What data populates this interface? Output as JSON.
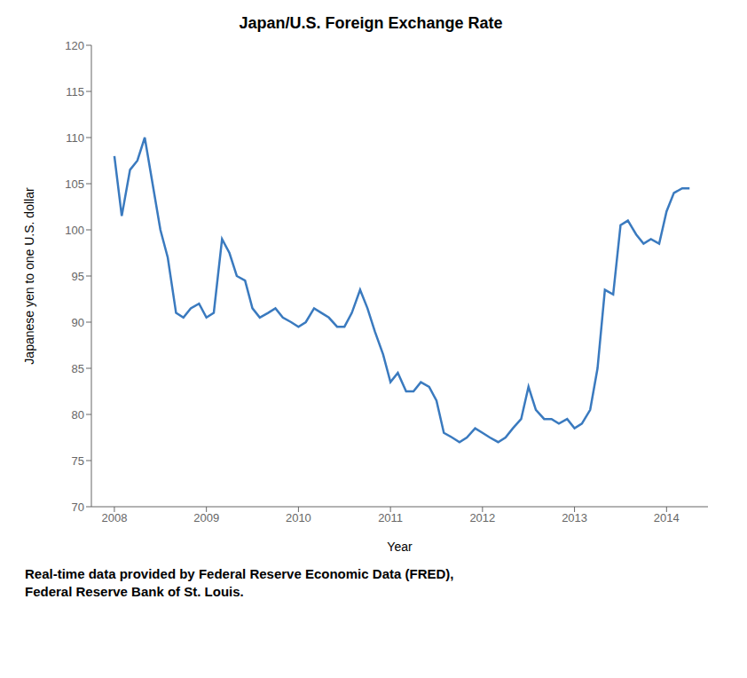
{
  "chart_data": {
    "type": "line",
    "title": "Japan/U.S. Foreign Exchange Rate",
    "x_label": "Year",
    "y_label": "Japanese yen to one U.S. dollar",
    "annotations": [
      "Real-time data provided by Federal Reserve Economic Data (FRED),\nFederal Reserve Bank of St. Louis."
    ],
    "x": [
      2008.0,
      2008.08,
      2008.17,
      2008.25,
      2008.33,
      2008.5,
      2008.58,
      2008.67,
      2008.75,
      2008.83,
      2008.92,
      2009.0,
      2009.08,
      2009.17,
      2009.25,
      2009.33,
      2009.42,
      2009.5,
      2009.58,
      2009.67,
      2009.75,
      2009.83,
      2009.92,
      2010.0,
      2010.08,
      2010.17,
      2010.25,
      2010.33,
      2010.42,
      2010.5,
      2010.58,
      2010.67,
      2010.75,
      2010.83,
      2010.92,
      2011.0,
      2011.08,
      2011.17,
      2011.25,
      2011.33,
      2011.42,
      2011.5,
      2011.58,
      2011.67,
      2011.75,
      2011.83,
      2011.92,
      2012.0,
      2012.08,
      2012.17,
      2012.25,
      2012.33,
      2012.42,
      2012.5,
      2012.58,
      2012.67,
      2012.75,
      2012.83,
      2012.92,
      2013.0,
      2013.08,
      2013.17,
      2013.25,
      2013.33,
      2013.42,
      2013.5,
      2013.58,
      2013.67,
      2013.75,
      2013.83,
      2013.92,
      2014.0,
      2014.08,
      2014.17,
      2014.25
    ],
    "values": [
      108.0,
      101.5,
      106.5,
      107.5,
      110.0,
      100.0,
      97.0,
      91.0,
      90.5,
      91.5,
      92.0,
      90.5,
      91.0,
      99.0,
      97.5,
      95.0,
      94.5,
      91.5,
      90.5,
      91.0,
      91.5,
      90.5,
      90.0,
      89.5,
      90.0,
      91.5,
      91.0,
      90.5,
      89.5,
      89.5,
      91.0,
      93.5,
      91.5,
      89.0,
      86.5,
      83.5,
      84.5,
      82.5,
      82.5,
      83.5,
      83.0,
      81.5,
      78.0,
      77.5,
      77.0,
      77.5,
      78.5,
      78.0,
      77.5,
      77.0,
      77.5,
      78.5,
      79.5,
      83.0,
      80.5,
      79.5,
      79.5,
      79.0,
      79.5,
      78.5,
      79.0,
      80.5,
      85.0,
      93.5,
      93.0,
      100.5,
      101.0,
      99.5,
      98.5,
      99.0,
      98.5,
      102.0,
      104.0,
      104.5,
      104.5
    ],
    "color": "#3a7abf",
    "xlim": [
      2007.75,
      2014.45
    ],
    "xticks": [
      2008,
      2009,
      2010,
      2011,
      2012,
      2013,
      2014
    ],
    "ylim": [
      70,
      120
    ],
    "yticks": [
      70,
      75,
      80,
      85,
      90,
      95,
      100,
      105,
      110,
      115,
      120
    ],
    "grid": false
  }
}
